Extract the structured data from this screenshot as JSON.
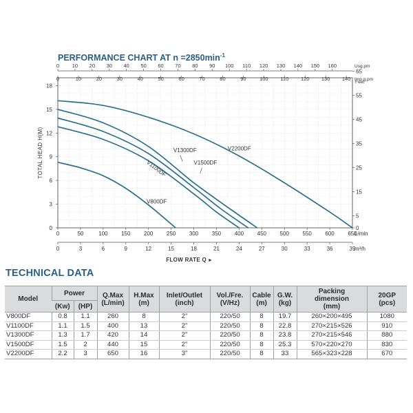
{
  "chart_data": {
    "type": "line",
    "title": "PERFORMANCE CHART AT n =2850min",
    "title_superscript": "-1",
    "ylabel": "TOTAL HEAD H(M)",
    "xlabel": "FLOW RATE Q",
    "xlabel_arrow": "►",
    "x_axis_lmin": {
      "unit": "L/min",
      "ticks": [
        0,
        50,
        100,
        150,
        200,
        250,
        300,
        350,
        400,
        450,
        500,
        550,
        600,
        650
      ],
      "range": [
        0,
        650
      ]
    },
    "x_axis_m3h": {
      "unit": "m³/h",
      "ticks": [
        0,
        3,
        6,
        9,
        12,
        15,
        18,
        21,
        24,
        27,
        30,
        33,
        36,
        39
      ]
    },
    "x_axis_usgpm": {
      "unit": "Usg.pm",
      "ticks": [
        0,
        10,
        20,
        30,
        40,
        50,
        60,
        70,
        80,
        90,
        100,
        110,
        120,
        130,
        140,
        150,
        160
      ]
    },
    "x_axis_impgpm": {
      "unit": "Imp.g.pm",
      "ticks": [
        0,
        10,
        20,
        30,
        40,
        50,
        60,
        70,
        80,
        90,
        100,
        110,
        120,
        130,
        140
      ]
    },
    "y_axis_m": {
      "ticks": [
        0,
        3,
        6,
        9,
        12,
        15,
        18
      ],
      "range": [
        0,
        19
      ]
    },
    "y_axis_feet": {
      "unit": "Feet",
      "ticks": [
        0,
        5,
        15,
        25,
        35,
        45,
        55,
        65
      ]
    },
    "series": [
      {
        "name": "V800DF",
        "x": [
          0,
          50,
          100,
          150,
          200,
          260
        ],
        "y": [
          8.3,
          7.6,
          6.6,
          5.0,
          2.9,
          0
        ]
      },
      {
        "name": "V1100DF",
        "x": [
          0,
          100,
          200,
          300,
          350,
          400
        ],
        "y": [
          12.8,
          11.2,
          8.5,
          4.3,
          2.0,
          0
        ]
      },
      {
        "name": "V1300DF",
        "x": [
          0,
          100,
          200,
          300,
          360,
          420
        ],
        "y": [
          13.9,
          12.2,
          9.4,
          5.1,
          2.4,
          0
        ]
      },
      {
        "name": "V1500DF",
        "x": [
          0,
          100,
          200,
          300,
          380,
          440
        ],
        "y": [
          15.0,
          13.3,
          10.3,
          5.7,
          2.4,
          0
        ]
      },
      {
        "name": "V2200DF",
        "x": [
          0,
          100,
          200,
          300,
          400,
          500,
          600,
          650
        ],
        "y": [
          16.1,
          15.5,
          14.0,
          11.9,
          9.1,
          5.7,
          2.0,
          0
        ]
      }
    ],
    "line_color": "#2a6f8e"
  },
  "technical_data": {
    "title": "TECHNICAL DATA",
    "headers": {
      "model": "Model",
      "power": "Power",
      "kw": "(Kw)",
      "hp": "(HP)",
      "qmax": "Q.Max",
      "qmax_unit": "(L/min)",
      "hmax": "H.Max",
      "hmax_unit": "(m)",
      "inlet": "Inlet/Outlet",
      "inlet_unit": "(inch)",
      "volfre": "Vol./Fre.",
      "volfre_unit": "(V/Hz)",
      "cable": "Cable",
      "cable_unit": "(m)",
      "gw": "G.W.",
      "gw_unit": "(kg)",
      "packing": "Packing",
      "packing2": "dimension",
      "packing_unit": "(mm)",
      "gp": "20GP",
      "gp_unit": "(pcs)"
    },
    "rows": [
      {
        "model": "V800DF",
        "kw": "0.8",
        "hp": "1.1",
        "qmax": "260",
        "hmax": "8",
        "inlet": "2\"",
        "volfre": "220/50",
        "cable": "8",
        "gw": "19.7",
        "packing": "260×200×495",
        "gp": "1080"
      },
      {
        "model": "V1100DF",
        "kw": "1.1",
        "hp": "1.5",
        "qmax": "400",
        "hmax": "13",
        "inlet": "2\"",
        "volfre": "220/50",
        "cable": "8",
        "gw": "22.8",
        "packing": "270×215×526",
        "gp": "910"
      },
      {
        "model": "V1300DF",
        "kw": "1.3",
        "hp": "1.7",
        "qmax": "420",
        "hmax": "14",
        "inlet": "2\"",
        "volfre": "220/50",
        "cable": "8",
        "gw": "23.8",
        "packing": "270×215×546",
        "gp": "880"
      },
      {
        "model": "V1500DF",
        "kw": "1.5",
        "hp": "2",
        "qmax": "440",
        "hmax": "15",
        "inlet": "2\"",
        "volfre": "220/50",
        "cable": "8",
        "gw": "25.3",
        "packing": "570×220×270",
        "gp": "830"
      },
      {
        "model": "V2200DF",
        "kw": "2.2",
        "hp": "3",
        "qmax": "650",
        "hmax": "16",
        "inlet": "3\"",
        "volfre": "220/50",
        "cable": "8",
        "gw": "33",
        "packing": "565×323×228",
        "gp": "670"
      }
    ]
  }
}
